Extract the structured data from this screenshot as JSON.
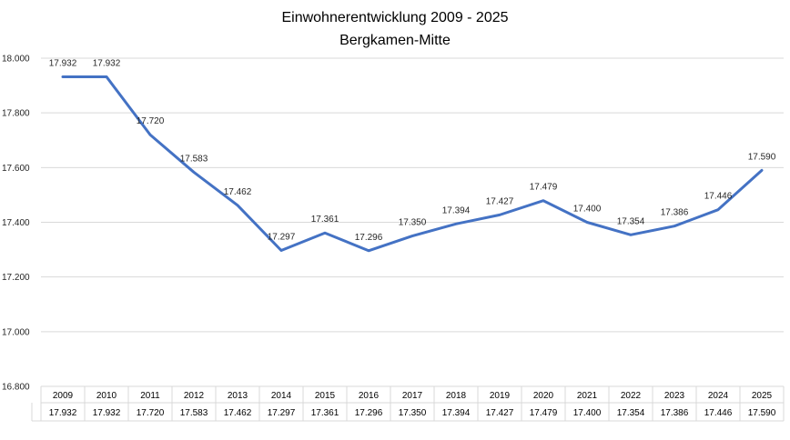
{
  "chart_data": {
    "type": "line",
    "title": "Einwohnerentwicklung 2009 - 2025",
    "subtitle": "Bergkamen-Mitte",
    "categories": [
      "2009",
      "2010",
      "2011",
      "2012",
      "2013",
      "2014",
      "2015",
      "2016",
      "2017",
      "2018",
      "2019",
      "2020",
      "2021",
      "2022",
      "2023",
      "2024",
      "2025"
    ],
    "series": [
      {
        "values": [
          17932,
          17932,
          17720,
          17583,
          17462,
          17297,
          17361,
          17296,
          17350,
          17394,
          17427,
          17479,
          17400,
          17354,
          17386,
          17446,
          17590
        ],
        "labels": [
          "17.932",
          "17.932",
          "17.720",
          "17.583",
          "17.462",
          "17.297",
          "17.361",
          "17.296",
          "17.350",
          "17.394",
          "17.427",
          "17.479",
          "17.400",
          "17.354",
          "17.386",
          "17.446",
          "17.590"
        ],
        "color": "#4472C4"
      }
    ],
    "ylim": [
      16800,
      18000
    ],
    "yticks": [
      {
        "value": 18000,
        "label": "18.000"
      },
      {
        "value": 17800,
        "label": "17.800"
      },
      {
        "value": 17600,
        "label": "17.600"
      },
      {
        "value": 17400,
        "label": "17.400"
      },
      {
        "value": 17200,
        "label": "17.200"
      },
      {
        "value": 17000,
        "label": "17.000"
      },
      {
        "value": 16800,
        "label": "16.800"
      }
    ],
    "grid": true,
    "data_table": true,
    "colors": {
      "grid": "#D9D9D9",
      "line": "#4472C4",
      "text": "#262626"
    }
  }
}
